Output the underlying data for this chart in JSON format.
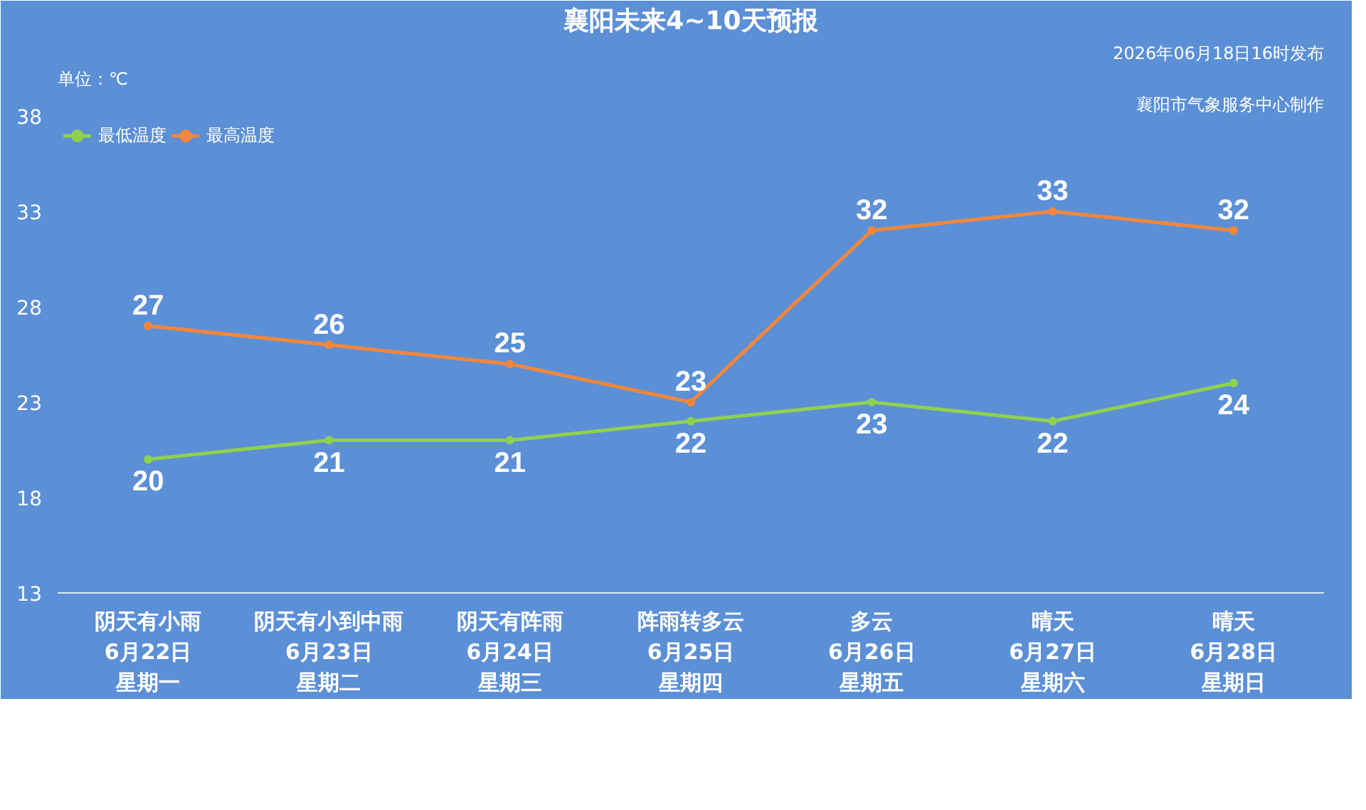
{
  "chart_data": {
    "type": "line",
    "title": "襄阳未来4~10天预报",
    "categories": [
      "阴天有小雨6月22日星期一",
      "阴天有小到中雨6月23日星期二",
      "阴天有阵雨6月24日星期三",
      "阵雨转多云6月25日星期四",
      "多云6月26日星期五",
      "晴天6月27日星期六",
      "晴天6月28日星期日"
    ],
    "series": [
      {
        "name": "最低温度",
        "color": "#8fd14f",
        "values": [
          20,
          21,
          21,
          22,
          23,
          22,
          24
        ]
      },
      {
        "name": "最高温度",
        "color": "#f5873a",
        "values": [
          27,
          26,
          25,
          23,
          32,
          33,
          32
        ]
      }
    ],
    "ylim": [
      13,
      38
    ],
    "yticks": [
      13,
      18,
      23,
      28,
      33,
      38
    ],
    "grid": false,
    "legend": "top left",
    "marker": "circle",
    "line_style": "solid",
    "data_labels": true,
    "annotations": [
      "单位：℃",
      "2026年06月18日16时发布",
      "襄阳市气象服务中心制作"
    ]
  }
}
